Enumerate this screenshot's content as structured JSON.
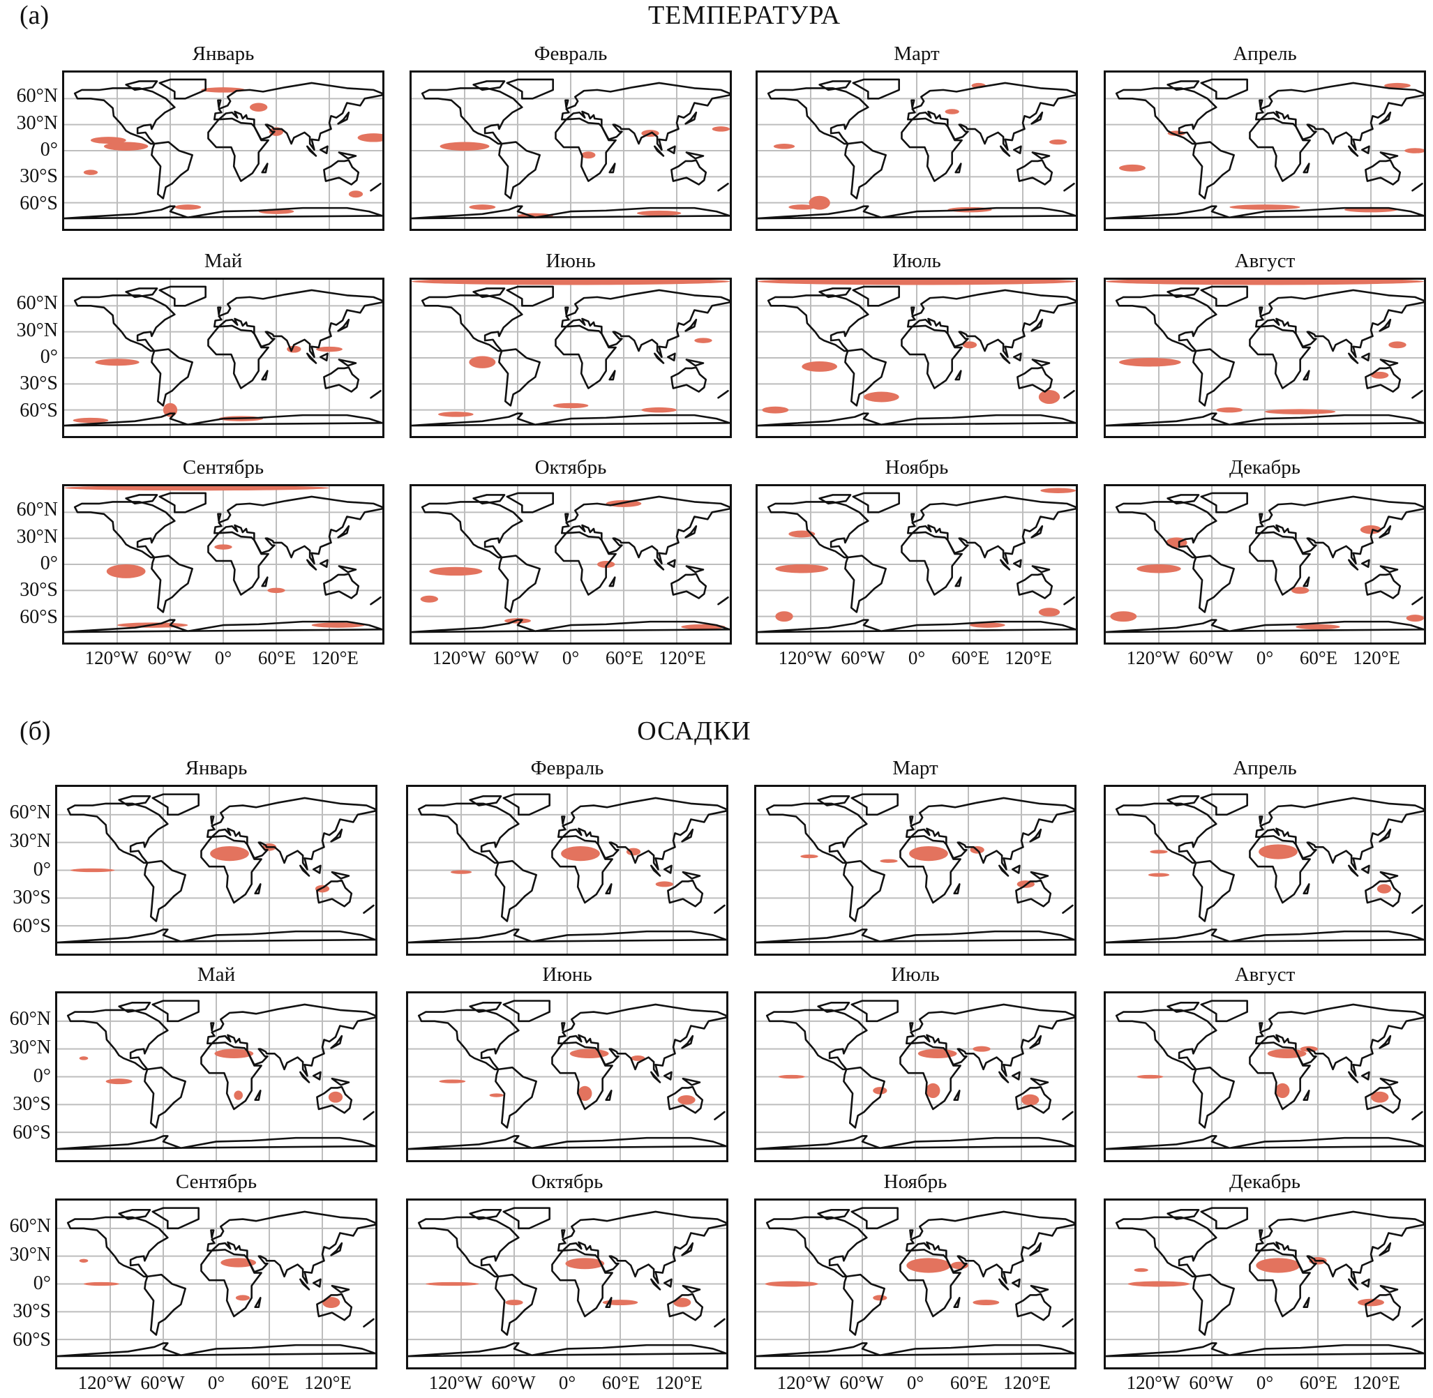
{
  "figure": {
    "sections": [
      {
        "label": "(а)",
        "title": "ТЕМПЕРАТУРА"
      },
      {
        "label": "(б)",
        "title": "ОСАДКИ"
      }
    ],
    "months": [
      "Январь",
      "Февраль",
      "Март",
      "Апрель",
      "Май",
      "Июнь",
      "Июль",
      "Август",
      "Сентябрь",
      "Октябрь",
      "Ноябрь",
      "Декабрь"
    ],
    "lat_ticks": [
      "60°N",
      "30°N",
      "0°",
      "30°S",
      "60°S"
    ],
    "lon_ticks": [
      "120°W",
      "60°W",
      "0°",
      "60°E",
      "120°E"
    ],
    "colors": {
      "anomaly": "#e3735e",
      "coast": "#111111",
      "grid": "#bdbdbd"
    }
  },
  "chart_data": [
    {
      "type": "map",
      "title": "ТЕМПЕРАТУРА",
      "units": "regions given as [lon, lat, rx_deg, ry_deg]",
      "panels": [
        [
          [
            -110,
            5,
            25,
            5
          ],
          [
            -130,
            12,
            20,
            4
          ],
          [
            170,
            15,
            18,
            5
          ],
          [
            0,
            70,
            25,
            3
          ],
          [
            40,
            50,
            10,
            5
          ],
          [
            60,
            22,
            8,
            5
          ],
          [
            -40,
            -65,
            15,
            3
          ],
          [
            60,
            -70,
            20,
            3
          ],
          [
            -150,
            -25,
            8,
            3
          ],
          [
            150,
            -50,
            8,
            4
          ]
        ],
        [
          [
            -120,
            5,
            28,
            5
          ],
          [
            -100,
            -65,
            15,
            3
          ],
          [
            100,
            -72,
            25,
            3
          ],
          [
            20,
            -5,
            8,
            4
          ],
          [
            90,
            20,
            10,
            4
          ],
          [
            -40,
            -75,
            20,
            3
          ],
          [
            170,
            25,
            10,
            3
          ]
        ],
        [
          [
            -110,
            -60,
            12,
            8
          ],
          [
            -150,
            5,
            12,
            3
          ],
          [
            60,
            -68,
            25,
            3
          ],
          [
            -130,
            -65,
            15,
            3
          ],
          [
            70,
            75,
            8,
            3
          ],
          [
            40,
            45,
            8,
            3
          ],
          [
            160,
            10,
            10,
            3
          ]
        ],
        [
          [
            0,
            -65,
            40,
            3
          ],
          [
            120,
            -68,
            30,
            3
          ],
          [
            -150,
            -20,
            15,
            4
          ],
          [
            150,
            75,
            15,
            3
          ],
          [
            -100,
            20,
            10,
            3
          ],
          [
            170,
            0,
            12,
            3
          ]
        ],
        [
          [
            -120,
            -5,
            25,
            4
          ],
          [
            -60,
            -60,
            8,
            8
          ],
          [
            20,
            -70,
            25,
            3
          ],
          [
            120,
            10,
            15,
            3
          ],
          [
            80,
            10,
            8,
            4
          ],
          [
            -150,
            -72,
            20,
            3
          ]
        ],
        [
          [
            0,
            88,
            180,
            4
          ],
          [
            -100,
            -5,
            15,
            7
          ],
          [
            -130,
            -65,
            20,
            3
          ],
          [
            100,
            -60,
            20,
            3
          ],
          [
            0,
            -55,
            20,
            3
          ],
          [
            150,
            20,
            10,
            3
          ]
        ],
        [
          [
            0,
            88,
            180,
            4
          ],
          [
            -110,
            -10,
            20,
            6
          ],
          [
            -40,
            -45,
            20,
            6
          ],
          [
            150,
            -45,
            12,
            8
          ],
          [
            -160,
            -60,
            15,
            4
          ],
          [
            60,
            15,
            8,
            4
          ]
        ],
        [
          [
            0,
            88,
            180,
            4
          ],
          [
            -130,
            -5,
            35,
            5
          ],
          [
            40,
            -62,
            40,
            3
          ],
          [
            130,
            -20,
            10,
            4
          ],
          [
            -40,
            -60,
            15,
            3
          ],
          [
            150,
            15,
            10,
            4
          ]
        ],
        [
          [
            -30,
            88,
            150,
            3
          ],
          [
            -110,
            -8,
            22,
            8
          ],
          [
            -80,
            -70,
            40,
            3
          ],
          [
            130,
            -70,
            30,
            3
          ],
          [
            60,
            -30,
            10,
            3
          ],
          [
            0,
            20,
            10,
            3
          ]
        ],
        [
          [
            -130,
            -8,
            30,
            5
          ],
          [
            60,
            70,
            20,
            4
          ],
          [
            -160,
            -40,
            10,
            4
          ],
          [
            150,
            -72,
            25,
            3
          ],
          [
            -60,
            -65,
            15,
            3
          ],
          [
            40,
            0,
            10,
            4
          ]
        ],
        [
          [
            -130,
            -5,
            30,
            5
          ],
          [
            -150,
            -60,
            10,
            6
          ],
          [
            150,
            -55,
            12,
            5
          ],
          [
            -130,
            35,
            15,
            4
          ],
          [
            80,
            -70,
            20,
            3
          ],
          [
            160,
            85,
            20,
            3
          ]
        ],
        [
          [
            -160,
            -60,
            15,
            6
          ],
          [
            -120,
            -5,
            25,
            5
          ],
          [
            -100,
            25,
            12,
            6
          ],
          [
            40,
            -30,
            10,
            4
          ],
          [
            170,
            -62,
            10,
            4
          ],
          [
            60,
            -72,
            25,
            3
          ],
          [
            120,
            40,
            12,
            5
          ]
        ]
      ]
    },
    {
      "type": "map",
      "title": "ОСАДКИ",
      "units": "regions given as [lon, lat, rx_deg, ry_deg]",
      "panels": [
        [
          [
            15,
            18,
            22,
            8
          ],
          [
            -140,
            0,
            25,
            2
          ],
          [
            60,
            25,
            8,
            4
          ],
          [
            120,
            -20,
            8,
            4
          ]
        ],
        [
          [
            15,
            18,
            22,
            8
          ],
          [
            -120,
            -2,
            12,
            2
          ],
          [
            75,
            20,
            8,
            4
          ],
          [
            110,
            -15,
            10,
            3
          ]
        ],
        [
          [
            15,
            18,
            22,
            8
          ],
          [
            70,
            22,
            8,
            4
          ],
          [
            -120,
            15,
            10,
            2
          ],
          [
            125,
            -15,
            10,
            4
          ],
          [
            -30,
            10,
            10,
            2
          ]
        ],
        [
          [
            15,
            20,
            22,
            8
          ],
          [
            -120,
            -5,
            12,
            2
          ],
          [
            135,
            -20,
            8,
            5
          ],
          [
            -120,
            20,
            10,
            2
          ]
        ],
        [
          [
            20,
            25,
            22,
            5
          ],
          [
            -110,
            -5,
            15,
            3
          ],
          [
            25,
            -20,
            5,
            5
          ],
          [
            135,
            -22,
            8,
            6
          ],
          [
            -150,
            20,
            5,
            2
          ]
        ],
        [
          [
            25,
            25,
            22,
            5
          ],
          [
            -130,
            -5,
            15,
            2
          ],
          [
            20,
            -18,
            8,
            8
          ],
          [
            135,
            -25,
            10,
            5
          ],
          [
            -80,
            -20,
            8,
            2
          ],
          [
            80,
            20,
            8,
            3
          ]
        ],
        [
          [
            25,
            25,
            22,
            5
          ],
          [
            -140,
            0,
            15,
            2
          ],
          [
            20,
            -15,
            8,
            8
          ],
          [
            130,
            -25,
            10,
            6
          ],
          [
            -40,
            -15,
            8,
            4
          ],
          [
            75,
            30,
            10,
            3
          ]
        ],
        [
          [
            25,
            25,
            22,
            5
          ],
          [
            -130,
            0,
            15,
            2
          ],
          [
            20,
            -15,
            8,
            8
          ],
          [
            130,
            -22,
            10,
            6
          ],
          [
            50,
            30,
            10,
            3
          ]
        ],
        [
          [
            25,
            23,
            20,
            5
          ],
          [
            130,
            -20,
            10,
            6
          ],
          [
            -130,
            0,
            20,
            2
          ],
          [
            -150,
            25,
            5,
            2
          ],
          [
            30,
            -15,
            8,
            3
          ]
        ],
        [
          [
            20,
            22,
            22,
            6
          ],
          [
            -130,
            0,
            30,
            2
          ],
          [
            60,
            -20,
            20,
            3
          ],
          [
            130,
            -20,
            10,
            5
          ],
          [
            -60,
            -20,
            10,
            3
          ]
        ],
        [
          [
            15,
            20,
            25,
            8
          ],
          [
            -140,
            0,
            30,
            3
          ],
          [
            50,
            20,
            10,
            4
          ],
          [
            80,
            -20,
            15,
            3
          ],
          [
            -40,
            -15,
            8,
            3
          ]
        ],
        [
          [
            15,
            20,
            25,
            8
          ],
          [
            -120,
            0,
            35,
            3
          ],
          [
            120,
            -20,
            15,
            4
          ],
          [
            60,
            25,
            10,
            4
          ],
          [
            -140,
            15,
            8,
            2
          ]
        ]
      ]
    }
  ]
}
